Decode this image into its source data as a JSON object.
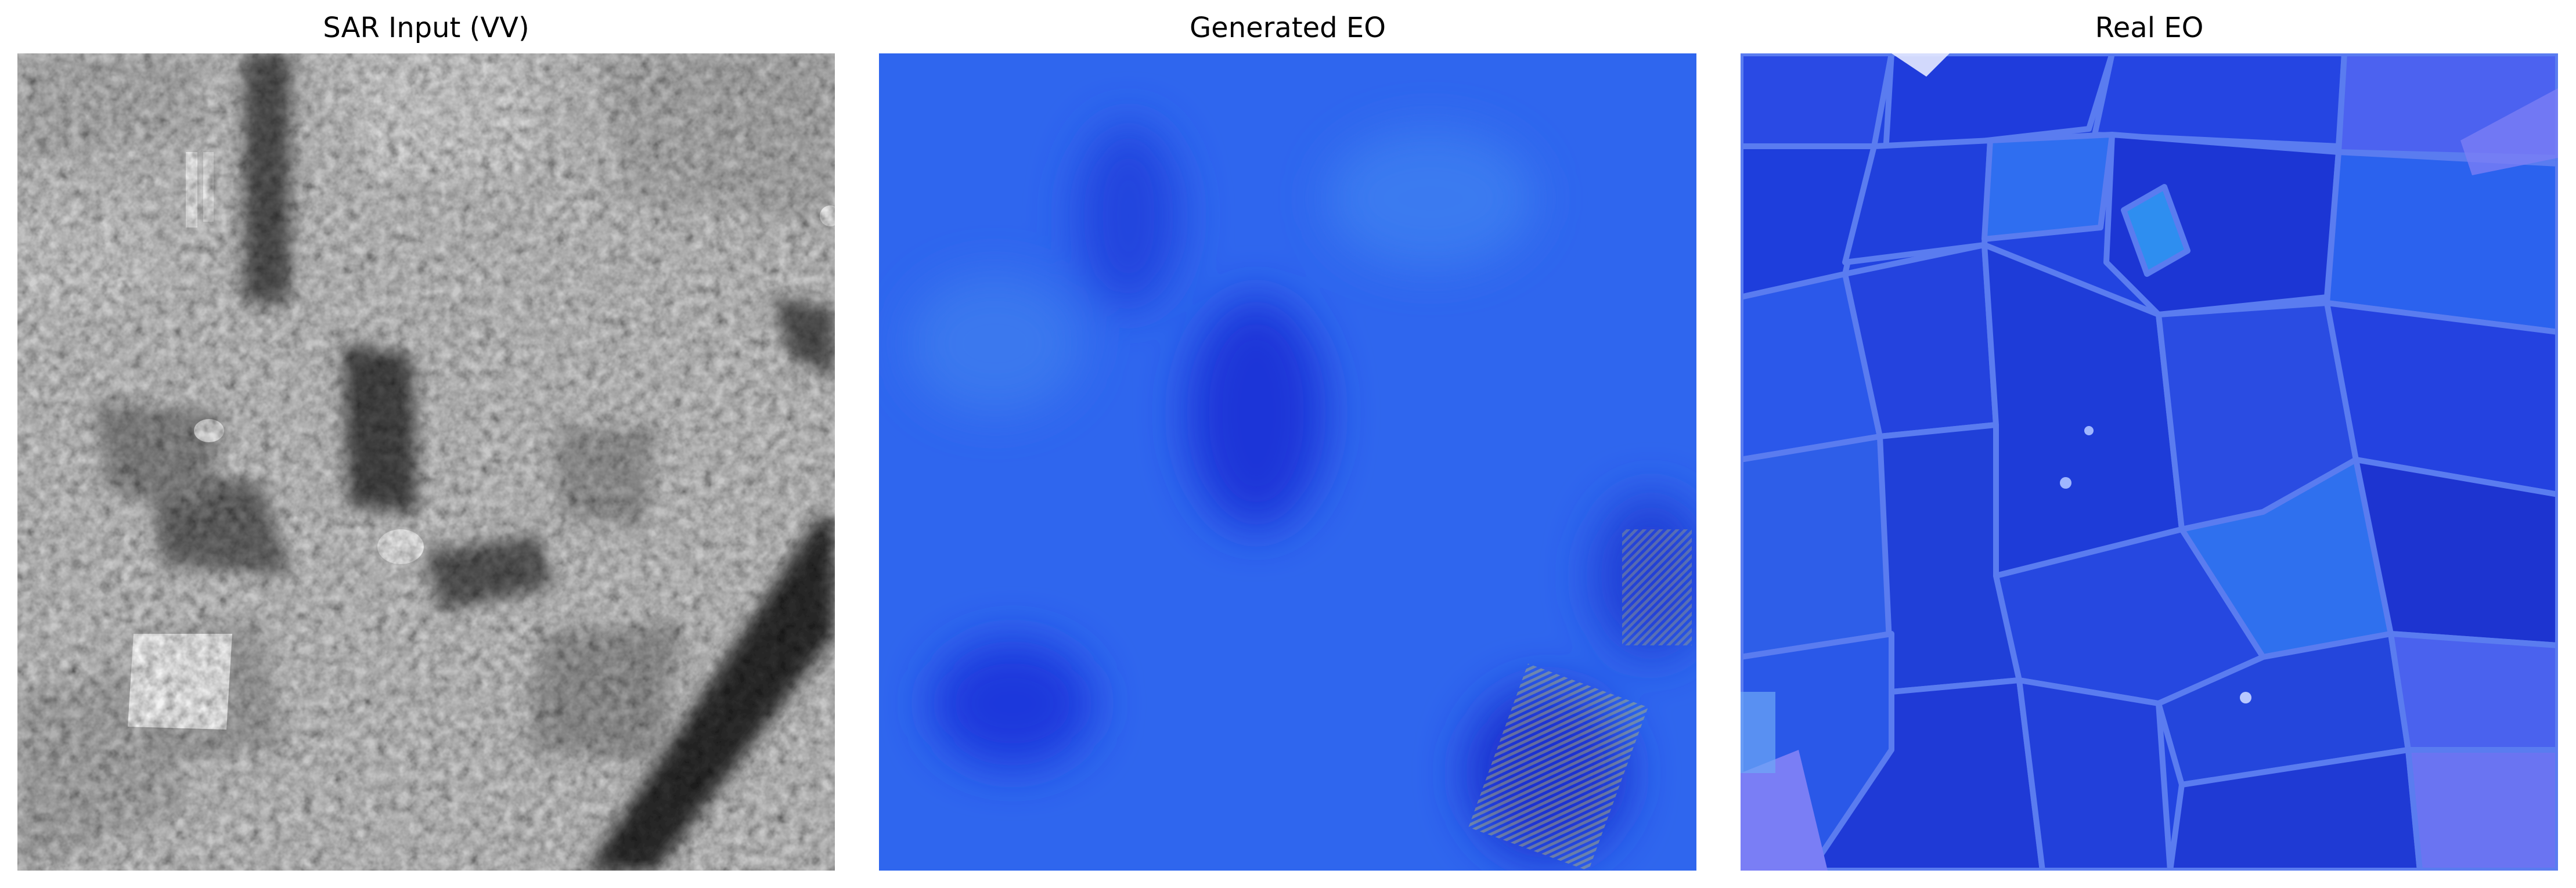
{
  "panels": [
    {
      "title": "SAR Input (VV)",
      "image": "sar-grayscale-texture"
    },
    {
      "title": "Generated EO",
      "image": "blue-noise-texture"
    },
    {
      "title": "Real EO",
      "image": "blue-field-parcels"
    }
  ],
  "colors": {
    "background": "#ffffff",
    "sar_mid_gray": "#a9a9a9",
    "generated_blue": "#2a57e8",
    "generated_cyan": "#2ad6e6",
    "real_blue": "#1e3ee0",
    "real_boundary": "#5a7cf0",
    "real_cyan_field": "#2e8ef0",
    "real_lavender": "#7a7ef5"
  }
}
